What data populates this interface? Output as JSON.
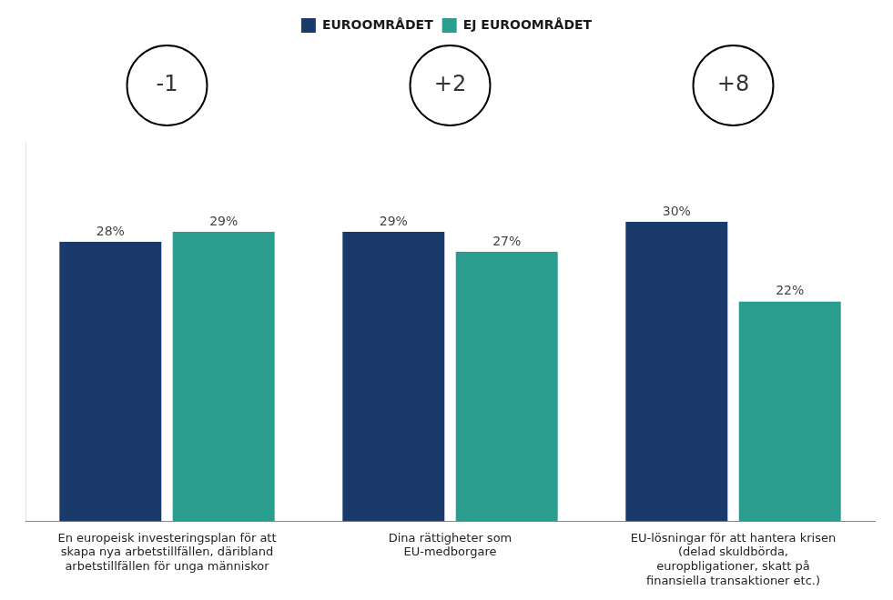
{
  "chart_data": {
    "type": "bar",
    "categories": [
      "En europeisk investeringsplan för att\nskapa nya arbetstillfällen, däribland\narbetstillfällen för unga människor",
      "Dina rättigheter som\nEU-medborgare",
      "EU-lösningar för att hantera krisen\n(delad skuldbörda,\neuropbligationer, skatt på\nfinansiella transaktioner etc.)"
    ],
    "series": [
      {
        "name": "EUROOMRÅDET",
        "color": "#1a3a6b",
        "values": [
          28,
          29,
          30
        ],
        "value_labels": [
          "28%",
          "29%",
          "30%"
        ]
      },
      {
        "name": "EJ EUROOMRÅDET",
        "color": "#2a9d8f",
        "values": [
          29,
          27,
          22
        ],
        "value_labels": [
          "29%",
          "27%",
          "22%"
        ]
      }
    ],
    "ylim": [
      0,
      38
    ],
    "annotations": [
      "-1",
      "+2",
      "+8"
    ],
    "data_labels": true,
    "legend": "top",
    "grid": false,
    "tick_labels": "x"
  }
}
